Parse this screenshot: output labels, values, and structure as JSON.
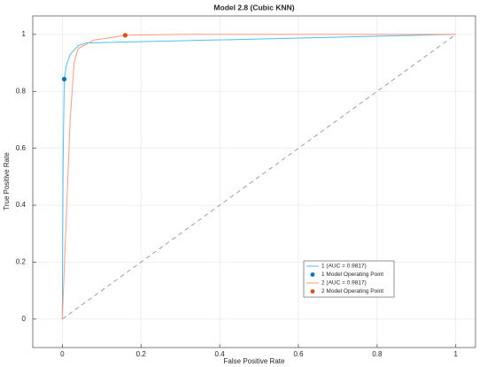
{
  "chart_data": {
    "type": "line",
    "title": "Model 2.8 (Cubic KNN)",
    "x_label": "False Positive Rate",
    "y_label": "True Positive Rate",
    "xlim": [
      -0.075,
      1.05
    ],
    "ylim": [
      -0.1,
      1.065
    ],
    "xticks": [
      0,
      0.2,
      0.4,
      0.6,
      0.8,
      1
    ],
    "yticks": [
      0,
      0.2,
      0.4,
      0.6,
      0.8,
      1
    ],
    "grid": true,
    "legend_position": "southeast",
    "series": [
      {
        "name": "1 (AUC = 0.9817)",
        "color": "#4dbeee",
        "style": "line",
        "x": [
          0,
          0.002,
          0.005,
          0.01,
          0.02,
          0.04,
          0.06,
          1
        ],
        "values": [
          0,
          0.55,
          0.84,
          0.89,
          0.93,
          0.96,
          0.97,
          1
        ]
      },
      {
        "name": "1 Model Operating Point",
        "color": "#0072bd",
        "style": "marker",
        "x": [
          0.005
        ],
        "values": [
          0.843
        ]
      },
      {
        "name": "2 (AUC = 0.9817)",
        "color": "#ff9980",
        "style": "line",
        "x": [
          0,
          0.01,
          0.02,
          0.03,
          0.04,
          0.08,
          0.16,
          0.3,
          1
        ],
        "values": [
          0,
          0.35,
          0.7,
          0.9,
          0.95,
          0.98,
          0.997,
          1,
          1
        ]
      },
      {
        "name": "2 Model Operating Point",
        "color": "#d95319",
        "style": "marker",
        "x": [
          0.16
        ],
        "values": [
          0.997
        ]
      }
    ]
  }
}
